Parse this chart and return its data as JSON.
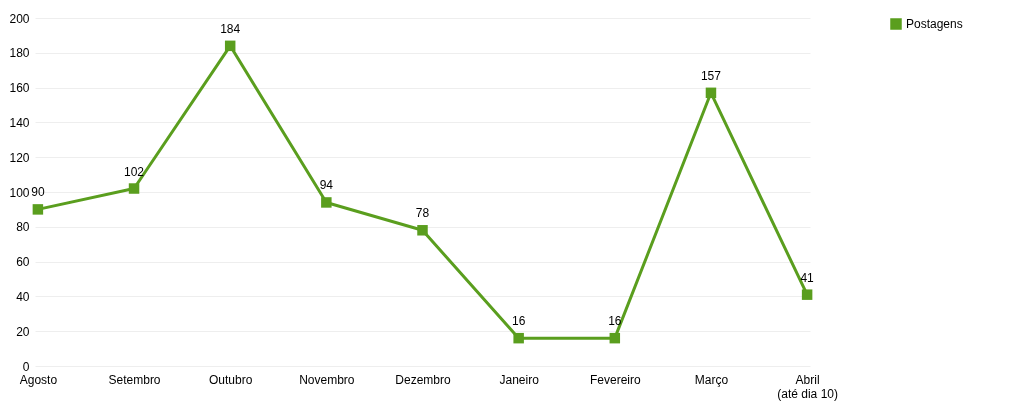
{
  "chart_data": {
    "type": "line",
    "categories": [
      "Agosto",
      "Setembro",
      "Outubro",
      "Novembro",
      "Dezembro",
      "Janeiro",
      "Fevereiro",
      "Março",
      "Abril\n(até dia 10)"
    ],
    "series": [
      {
        "name": "Postagens",
        "color": "#5a9e1e",
        "values": [
          90,
          102,
          184,
          94,
          78,
          16,
          16,
          157,
          41
        ]
      }
    ],
    "ylim": [
      0,
      200
    ],
    "yticks": [
      0,
      20,
      40,
      60,
      80,
      100,
      120,
      140,
      160,
      180,
      200
    ],
    "grid": "y",
    "legend": "right",
    "marker": "square",
    "line_style": "solid",
    "data_labels": true
  }
}
